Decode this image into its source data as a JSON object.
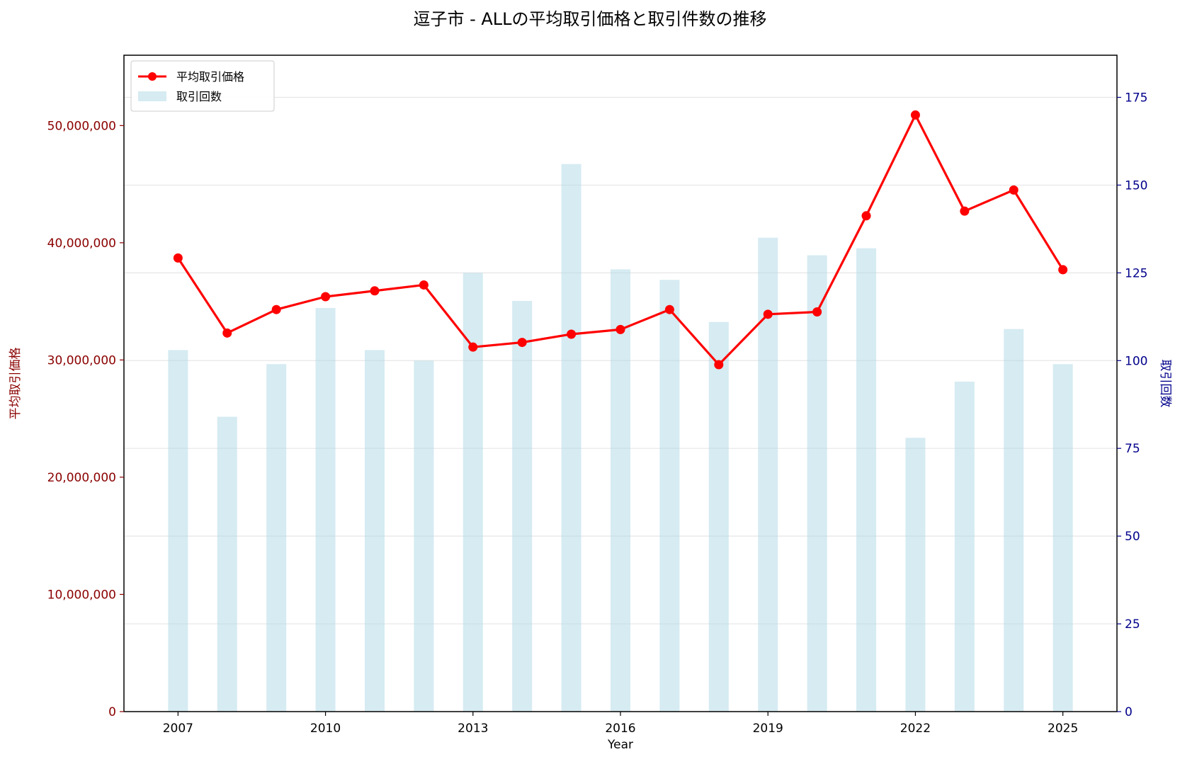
{
  "chart_data": {
    "type": "bar+line",
    "title": "逗子市 - ALLの平均取引価格と取引件数の推移",
    "xlabel": "Year",
    "ylabel_left": "平均取引価格",
    "ylabel_right": "取引回数",
    "x": [
      2007,
      2008,
      2009,
      2010,
      2011,
      2012,
      2013,
      2014,
      2015,
      2016,
      2017,
      2018,
      2019,
      2020,
      2021,
      2022,
      2023,
      2024,
      2025
    ],
    "x_ticks": [
      "2007",
      "2010",
      "2013",
      "2016",
      "2019",
      "2022",
      "2025"
    ],
    "xlim": [
      2005.9,
      2026.1
    ],
    "ylim_left": [
      0,
      56000000
    ],
    "ylim_right": [
      0,
      187
    ],
    "y_ticks_left": [
      "0",
      "10,000,000",
      "20,000,000",
      "30,000,000",
      "40,000,000",
      "50,000,000"
    ],
    "y_ticks_left_values": [
      0,
      10000000,
      20000000,
      30000000,
      40000000,
      50000000
    ],
    "y_ticks_right": [
      "0",
      "25",
      "50",
      "75",
      "100",
      "125",
      "150",
      "175"
    ],
    "y_ticks_right_values": [
      0,
      25,
      50,
      75,
      100,
      125,
      150,
      175
    ],
    "series": [
      {
        "name": "平均取引価格",
        "kind": "line",
        "axis": "left",
        "color": "#ff0000",
        "values": [
          38700000,
          32300000,
          34300000,
          35400000,
          35900000,
          36400000,
          31100000,
          31500000,
          32200000,
          32600000,
          34300000,
          29600000,
          33900000,
          34100000,
          42300000,
          50900000,
          42700000,
          44500000,
          37700000
        ]
      },
      {
        "name": "取引回数",
        "kind": "bar",
        "axis": "right",
        "color": "#add8e6",
        "values": [
          103,
          84,
          99,
          115,
          103,
          100,
          125,
          117,
          156,
          126,
          123,
          111,
          135,
          130,
          132,
          78,
          94,
          109,
          99
        ]
      }
    ],
    "grid": true,
    "legend_position": "top-left",
    "colors": {
      "left_axis": "#8b0000",
      "right_axis": "#00008b",
      "grid": "#e6e6e6"
    }
  }
}
